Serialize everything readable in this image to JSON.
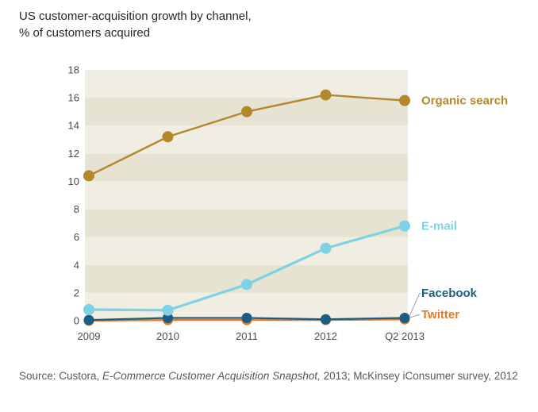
{
  "title": {
    "line1": "US customer-acquisition growth by channel,",
    "line2": "% of customers acquired"
  },
  "source": {
    "prefix": "Source: Custora, ",
    "italic": "E-Commerce Customer Acquisition Snapshot,",
    "suffix": " 2013; McKinsey iConsumer survey, 2012"
  },
  "chart_data": {
    "type": "line",
    "title": "US customer-acquisition growth by channel, % of customers acquired",
    "categories": [
      "2009",
      "2010",
      "2011",
      "2012",
      "Q2 2013"
    ],
    "series": [
      {
        "name": "Organic search",
        "color": "#b3882d",
        "values": [
          10.4,
          13.2,
          15.0,
          16.2,
          15.8
        ],
        "label_y": 15.8,
        "line_width": 2.4,
        "marker_radius": 7,
        "leader": false
      },
      {
        "name": "E-mail",
        "color": "#7fd1e4",
        "values": [
          0.8,
          0.75,
          2.6,
          5.2,
          6.8
        ],
        "label_y": 6.8,
        "line_width": 3.2,
        "marker_radius": 7,
        "leader": false
      },
      {
        "name": "Facebook",
        "color": "#1b5e84",
        "values": [
          0.05,
          0.2,
          0.2,
          0.1,
          0.2
        ],
        "label_y": 2.0,
        "line_width": 2.2,
        "marker_radius": 6.5,
        "leader": true
      },
      {
        "name": "Twitter",
        "color": "#e57a22",
        "values": [
          0.0,
          0.05,
          0.05,
          0.05,
          0.1
        ],
        "label_y": 0.45,
        "line_width": 2.2,
        "marker_radius": 6.5,
        "leader": true
      }
    ],
    "xlabel": "",
    "ylabel": "",
    "ylim": [
      0,
      18
    ],
    "ytick_step": 2,
    "grid": "horizontal-striped-bands",
    "band_colors": {
      "light": "#f0eee2",
      "dark": "#e6e3d2"
    },
    "legend_position": "right-of-line-ends",
    "axis_text_color": "#4a4a4a",
    "leader_line_color": "#a6a6a6"
  }
}
